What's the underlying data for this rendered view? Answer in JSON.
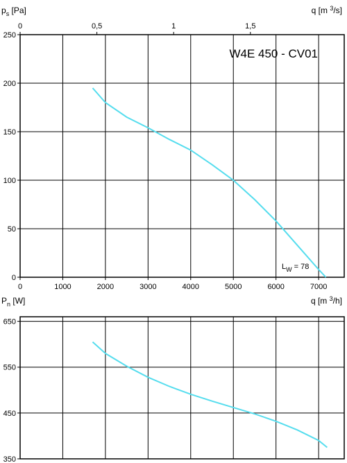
{
  "chart_data": [
    {
      "type": "line",
      "title": "W4E 450 - CV01",
      "annotation": {
        "sym": "L",
        "sub": "W",
        "text": " = 78"
      },
      "ylabel": {
        "sym": "p",
        "sub": "s",
        "unit": " [Pa]"
      },
      "top_xlabel": {
        "pre": "q [m ",
        "sup": "3",
        "post": "/s]"
      },
      "xlabel": {
        "pre": "q [m ",
        "sup": "3",
        "post": "/h]"
      },
      "xlim": [
        0,
        7600
      ],
      "ylim": [
        0,
        250
      ],
      "x_ticks": [
        0,
        1000,
        2000,
        3000,
        4000,
        5000,
        6000,
        7000
      ],
      "y_ticks": [
        0,
        50,
        100,
        150,
        200,
        250
      ],
      "top_ticks": [
        {
          "value": 0,
          "label": "0"
        },
        {
          "value": 0.5,
          "label": "0,5"
        },
        {
          "value": 1,
          "label": "1"
        },
        {
          "value": 1.5,
          "label": "1,5"
        }
      ],
      "grid": true,
      "series": [
        {
          "color": "#55ddee",
          "x": [
            1700,
            2000,
            2500,
            3000,
            3500,
            4000,
            4500,
            5000,
            5500,
            6000,
            6500,
            7000,
            7170
          ],
          "y": [
            195,
            180,
            165,
            154,
            142,
            131,
            116,
            100,
            80,
            58,
            33,
            8,
            0
          ]
        }
      ]
    },
    {
      "type": "line",
      "ylabel": {
        "sym": "P",
        "sub": "n",
        "unit": " [W]"
      },
      "xlim": [
        0,
        7600
      ],
      "ylim": [
        350,
        660
      ],
      "y_ticks": [
        350,
        450,
        550,
        650
      ],
      "grid": true,
      "series": [
        {
          "color": "#55ddee",
          "x": [
            1700,
            2000,
            2500,
            3000,
            3500,
            4000,
            4500,
            5000,
            5500,
            6000,
            6500,
            7000,
            7200
          ],
          "y": [
            605,
            580,
            552,
            528,
            508,
            491,
            476,
            462,
            448,
            432,
            413,
            390,
            375
          ]
        }
      ]
    }
  ]
}
